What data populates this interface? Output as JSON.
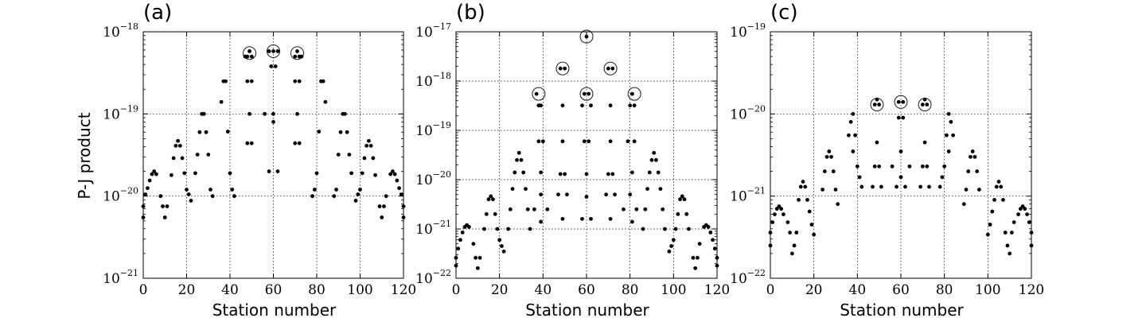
{
  "shared": {
    "ylabel": "P-J product",
    "xlabel": "Station number",
    "x_ticks": [
      0,
      20,
      40,
      60,
      80,
      100,
      120
    ],
    "marker_color": "#000000"
  },
  "chart_data": [
    {
      "type": "scatter",
      "panel_label": "(a)",
      "xlabel": "Station number",
      "ylabel": "P-J product",
      "xlim": [
        0,
        120
      ],
      "ylim": [
        1e-21,
        1e-18
      ],
      "yscale": "log",
      "grid": true,
      "y_ticks": [
        {
          "base": "10",
          "exp": "−21"
        },
        {
          "base": "10",
          "exp": "−20"
        },
        {
          "base": "10",
          "exp": "−19"
        },
        {
          "base": "10",
          "exp": "−18"
        }
      ],
      "points": [
        [
          0,
          5.5e-21
        ],
        [
          0,
          7.5e-21
        ],
        [
          1,
          1.05e-20
        ],
        [
          2,
          1.25e-20
        ],
        [
          3,
          1.55e-20
        ],
        [
          4,
          1.85e-20
        ],
        [
          5,
          2e-20
        ],
        [
          6,
          1.85e-20
        ],
        [
          8,
          1e-20
        ],
        [
          9,
          7.5e-21
        ],
        [
          10,
          5.5e-21
        ],
        [
          11,
          7.5e-21
        ],
        [
          13,
          1.8e-20
        ],
        [
          14,
          2.9e-20
        ],
        [
          15,
          4.1e-20
        ],
        [
          16,
          4.7e-20
        ],
        [
          17,
          4.1e-20
        ],
        [
          18,
          2.9e-20
        ],
        [
          19,
          1.9e-20
        ],
        [
          20,
          1.2e-20
        ],
        [
          21,
          1.05e-20
        ],
        [
          22,
          8.8e-21
        ],
        [
          24,
          1.9e-20
        ],
        [
          25,
          3.2e-20
        ],
        [
          26,
          6e-20
        ],
        [
          27,
          1e-19
        ],
        [
          28,
          1e-19
        ],
        [
          29,
          6e-20
        ],
        [
          30,
          3.2e-20
        ],
        [
          31,
          1.2e-20
        ],
        [
          32,
          1e-20
        ],
        [
          36,
          1.4e-19
        ],
        [
          37,
          2.5e-19
        ],
        [
          38,
          2.5e-19
        ],
        [
          39,
          6.1e-20
        ],
        [
          40,
          1.9e-20
        ],
        [
          41,
          1.2e-20
        ],
        [
          42,
          1e-20
        ],
        [
          47,
          5e-19
        ],
        [
          48,
          5e-19
        ],
        [
          49,
          5.8e-19
        ],
        [
          50,
          5e-19
        ],
        [
          48,
          2.5e-19
        ],
        [
          50,
          2.5e-19
        ],
        [
          49,
          1e-19
        ],
        [
          48,
          4.4e-20
        ],
        [
          50,
          4.4e-20
        ],
        [
          58,
          5.8e-19
        ],
        [
          60,
          5.8e-19
        ],
        [
          62,
          5.8e-19
        ],
        [
          59,
          3.8e-19
        ],
        [
          61,
          3.8e-19
        ],
        [
          60,
          1e-19
        ],
        [
          60,
          8e-20
        ],
        [
          58,
          2e-20
        ],
        [
          62,
          2e-20
        ],
        [
          56,
          1e-19
        ],
        [
          70,
          5e-19
        ],
        [
          71,
          5.8e-19
        ],
        [
          72,
          5e-19
        ],
        [
          73,
          5e-19
        ],
        [
          70,
          2.5e-19
        ],
        [
          72,
          2.5e-19
        ],
        [
          71,
          1e-19
        ],
        [
          70,
          4.4e-20
        ],
        [
          72,
          4.4e-20
        ],
        [
          78,
          1e-20
        ],
        [
          79,
          1.2e-20
        ],
        [
          80,
          1.9e-20
        ],
        [
          81,
          6.1e-20
        ],
        [
          82,
          2.5e-19
        ],
        [
          83,
          2.5e-19
        ],
        [
          84,
          1.4e-19
        ],
        [
          88,
          1e-20
        ],
        [
          89,
          1.2e-20
        ],
        [
          90,
          3.2e-20
        ],
        [
          91,
          6e-20
        ],
        [
          92,
          1e-19
        ],
        [
          93,
          1e-19
        ],
        [
          94,
          6e-20
        ],
        [
          95,
          3.2e-20
        ],
        [
          96,
          1.9e-20
        ],
        [
          98,
          8.8e-21
        ],
        [
          99,
          1.05e-20
        ],
        [
          100,
          1.2e-20
        ],
        [
          101,
          1.9e-20
        ],
        [
          102,
          2.9e-20
        ],
        [
          103,
          4.1e-20
        ],
        [
          104,
          4.7e-20
        ],
        [
          105,
          4.1e-20
        ],
        [
          106,
          2.9e-20
        ],
        [
          107,
          1.8e-20
        ],
        [
          109,
          7.5e-21
        ],
        [
          110,
          5.5e-21
        ],
        [
          111,
          7.5e-21
        ],
        [
          112,
          1e-20
        ],
        [
          114,
          1.85e-20
        ],
        [
          115,
          2e-20
        ],
        [
          116,
          1.85e-20
        ],
        [
          117,
          1.55e-20
        ],
        [
          118,
          1.25e-20
        ],
        [
          119,
          1.05e-20
        ],
        [
          120,
          7.5e-21
        ],
        [
          120,
          5.5e-21
        ]
      ],
      "circled": [
        [
          49,
          5.5e-19
        ],
        [
          60,
          5.8e-19
        ],
        [
          71,
          5.5e-19
        ]
      ]
    },
    {
      "type": "scatter",
      "panel_label": "(b)",
      "xlabel": "Station number",
      "ylabel": "",
      "xlim": [
        0,
        120
      ],
      "ylim": [
        1e-22,
        1e-17
      ],
      "yscale": "log",
      "grid": true,
      "y_ticks": [
        {
          "base": "10",
          "exp": "−22"
        },
        {
          "base": "10",
          "exp": "−21"
        },
        {
          "base": "10",
          "exp": "−20"
        },
        {
          "base": "10",
          "exp": "−19"
        },
        {
          "base": "10",
          "exp": "−18"
        },
        {
          "base": "10",
          "exp": "−17"
        }
      ],
      "points": [
        [
          0,
          1.8e-22
        ],
        [
          0,
          2.6e-22
        ],
        [
          1,
          4e-22
        ],
        [
          2,
          6e-22
        ],
        [
          3,
          8.5e-22
        ],
        [
          4,
          1.1e-21
        ],
        [
          5,
          1.2e-21
        ],
        [
          6,
          1.1e-21
        ],
        [
          8,
          5e-22
        ],
        [
          9,
          2.6e-22
        ],
        [
          10,
          1.6e-22
        ],
        [
          11,
          2.6e-22
        ],
        [
          13,
          1e-21
        ],
        [
          14,
          2e-21
        ],
        [
          15,
          4e-21
        ],
        [
          16,
          4.6e-21
        ],
        [
          17,
          4e-21
        ],
        [
          18,
          2e-21
        ],
        [
          19,
          1e-21
        ],
        [
          20,
          6e-22
        ],
        [
          21,
          4.5e-22
        ],
        [
          22,
          3.5e-22
        ],
        [
          24,
          1e-21
        ],
        [
          25,
          2.5e-21
        ],
        [
          26,
          6.5e-21
        ],
        [
          27,
          1.4e-20
        ],
        [
          28,
          2.5e-20
        ],
        [
          29,
          3.5e-20
        ],
        [
          30,
          2.5e-20
        ],
        [
          31,
          1.4e-20
        ],
        [
          32,
          6.5e-21
        ],
        [
          33,
          2.5e-21
        ],
        [
          34,
          1e-21
        ],
        [
          37,
          5.5e-19
        ],
        [
          38,
          3.2e-19
        ],
        [
          39,
          3.2e-19
        ],
        [
          38,
          6e-20
        ],
        [
          40,
          6e-20
        ],
        [
          39,
          1.4e-20
        ],
        [
          39,
          5e-21
        ],
        [
          36,
          2.5e-21
        ],
        [
          42,
          2.5e-21
        ],
        [
          39,
          1.4e-21
        ],
        [
          48,
          1.8e-18
        ],
        [
          50,
          1.8e-18
        ],
        [
          49,
          3.2e-19
        ],
        [
          49,
          6e-20
        ],
        [
          48,
          1.3e-20
        ],
        [
          50,
          1.3e-20
        ],
        [
          47,
          5e-21
        ],
        [
          51,
          5e-21
        ],
        [
          49,
          1.6e-21
        ],
        [
          59,
          5.5e-19
        ],
        [
          61,
          5.5e-19
        ],
        [
          58,
          3.2e-19
        ],
        [
          62,
          3.2e-19
        ],
        [
          60,
          8e-18
        ],
        [
          59,
          6e-20
        ],
        [
          61,
          6e-20
        ],
        [
          60,
          1.3e-20
        ],
        [
          60,
          4.5e-21
        ],
        [
          58,
          1.6e-21
        ],
        [
          62,
          1.6e-21
        ],
        [
          70,
          1.8e-18
        ],
        [
          72,
          1.8e-18
        ],
        [
          71,
          3.2e-19
        ],
        [
          71,
          6e-20
        ],
        [
          70,
          1.3e-20
        ],
        [
          72,
          1.3e-20
        ],
        [
          69,
          5e-21
        ],
        [
          73,
          5e-21
        ],
        [
          71,
          1.6e-21
        ],
        [
          81,
          5.5e-19
        ],
        [
          80,
          3.2e-19
        ],
        [
          82,
          3.2e-19
        ],
        [
          79,
          6e-20
        ],
        [
          82,
          6e-20
        ],
        [
          81,
          1.4e-20
        ],
        [
          80,
          5e-21
        ],
        [
          77,
          2.5e-21
        ],
        [
          83,
          2.5e-21
        ],
        [
          81,
          1.4e-21
        ],
        [
          86,
          1e-21
        ],
        [
          87,
          2.5e-21
        ],
        [
          88,
          6.5e-21
        ],
        [
          89,
          1.4e-20
        ],
        [
          90,
          2.5e-20
        ],
        [
          91,
          3.5e-20
        ],
        [
          92,
          2.5e-20
        ],
        [
          93,
          1.4e-20
        ],
        [
          94,
          6.5e-21
        ],
        [
          95,
          2.5e-21
        ],
        [
          96,
          1e-21
        ],
        [
          98,
          3.5e-22
        ],
        [
          99,
          4.5e-22
        ],
        [
          100,
          6e-22
        ],
        [
          101,
          1e-21
        ],
        [
          102,
          2e-21
        ],
        [
          103,
          4e-21
        ],
        [
          104,
          4.6e-21
        ],
        [
          105,
          4e-21
        ],
        [
          106,
          2e-21
        ],
        [
          107,
          1e-21
        ],
        [
          109,
          2.6e-22
        ],
        [
          110,
          1.6e-22
        ],
        [
          111,
          2.6e-22
        ],
        [
          112,
          5e-22
        ],
        [
          114,
          1.1e-21
        ],
        [
          115,
          1.2e-21
        ],
        [
          116,
          1.1e-21
        ],
        [
          117,
          8.5e-22
        ],
        [
          118,
          6e-22
        ],
        [
          119,
          4e-22
        ],
        [
          120,
          2.6e-22
        ],
        [
          120,
          1.8e-22
        ]
      ],
      "circled": [
        [
          38,
          5.5e-19
        ],
        [
          49,
          1.8e-18
        ],
        [
          60,
          8e-18
        ],
        [
          60,
          5.5e-19
        ],
        [
          71,
          1.8e-18
        ],
        [
          82,
          5.5e-19
        ]
      ]
    },
    {
      "type": "scatter",
      "panel_label": "(c)",
      "xlabel": "Station number",
      "ylabel": "",
      "xlim": [
        0,
        120
      ],
      "ylim": [
        1e-22,
        1e-19
      ],
      "yscale": "log",
      "grid": true,
      "y_ticks": [
        {
          "base": "10",
          "exp": "−22"
        },
        {
          "base": "10",
          "exp": "−21"
        },
        {
          "base": "10",
          "exp": "−20"
        },
        {
          "base": "10",
          "exp": "−19"
        }
      ],
      "points": [
        [
          0,
          2.5e-22
        ],
        [
          0,
          3.6e-22
        ],
        [
          1,
          4.8e-22
        ],
        [
          2,
          6e-22
        ],
        [
          3,
          7e-22
        ],
        [
          4,
          7.5e-22
        ],
        [
          5,
          7e-22
        ],
        [
          6,
          6e-22
        ],
        [
          8,
          4.8e-22
        ],
        [
          9,
          3.6e-22
        ],
        [
          10,
          2e-22
        ],
        [
          11,
          2.5e-22
        ],
        [
          12,
          3.6e-22
        ],
        [
          13,
          9e-22
        ],
        [
          14,
          1.3e-21
        ],
        [
          15,
          1.5e-21
        ],
        [
          16,
          1.3e-21
        ],
        [
          17,
          9e-22
        ],
        [
          18,
          6.5e-22
        ],
        [
          19,
          4.5e-22
        ],
        [
          20,
          3.4e-22
        ],
        [
          24,
          1.2e-21
        ],
        [
          25,
          2e-21
        ],
        [
          26,
          3e-21
        ],
        [
          27,
          3.5e-21
        ],
        [
          28,
          3e-21
        ],
        [
          29,
          2e-21
        ],
        [
          30,
          1.2e-21
        ],
        [
          31,
          8e-22
        ],
        [
          36,
          5.5e-21
        ],
        [
          37,
          8e-21
        ],
        [
          38,
          1e-20
        ],
        [
          39,
          5.5e-21
        ],
        [
          40,
          2.3e-21
        ],
        [
          41,
          1.7e-21
        ],
        [
          42,
          1.3e-21
        ],
        [
          38,
          3.5e-21
        ],
        [
          48,
          1.3e-20
        ],
        [
          49,
          1.5e-20
        ],
        [
          50,
          1.3e-20
        ],
        [
          49,
          4.5e-21
        ],
        [
          48,
          2.3e-21
        ],
        [
          50,
          2.3e-21
        ],
        [
          47,
          1.3e-21
        ],
        [
          51,
          1.3e-21
        ],
        [
          59,
          1.4e-20
        ],
        [
          61,
          1.4e-20
        ],
        [
          59,
          9e-21
        ],
        [
          61,
          9e-21
        ],
        [
          60,
          3.5e-21
        ],
        [
          60,
          1.7e-21
        ],
        [
          58,
          1.3e-21
        ],
        [
          62,
          1.3e-21
        ],
        [
          56,
          2.3e-21
        ],
        [
          64,
          2.3e-21
        ],
        [
          70,
          1.3e-20
        ],
        [
          71,
          1.5e-20
        ],
        [
          72,
          1.3e-20
        ],
        [
          71,
          4.5e-21
        ],
        [
          70,
          2.3e-21
        ],
        [
          72,
          2.3e-21
        ],
        [
          69,
          1.3e-21
        ],
        [
          73,
          1.3e-21
        ],
        [
          78,
          1.3e-21
        ],
        [
          79,
          1.7e-21
        ],
        [
          80,
          2.3e-21
        ],
        [
          81,
          5.5e-21
        ],
        [
          82,
          1e-20
        ],
        [
          83,
          8e-21
        ],
        [
          84,
          5.5e-21
        ],
        [
          82,
          3.5e-21
        ],
        [
          89,
          8e-22
        ],
        [
          90,
          1.2e-21
        ],
        [
          91,
          2e-21
        ],
        [
          92,
          3e-21
        ],
        [
          93,
          3.5e-21
        ],
        [
          94,
          3e-21
        ],
        [
          95,
          2e-21
        ],
        [
          96,
          1.2e-21
        ],
        [
          100,
          3.4e-22
        ],
        [
          101,
          4.5e-22
        ],
        [
          102,
          6.5e-22
        ],
        [
          103,
          9e-22
        ],
        [
          104,
          1.3e-21
        ],
        [
          105,
          1.5e-21
        ],
        [
          106,
          1.3e-21
        ],
        [
          107,
          9e-22
        ],
        [
          108,
          3.6e-22
        ],
        [
          109,
          2.5e-22
        ],
        [
          110,
          2e-22
        ],
        [
          111,
          3.6e-22
        ],
        [
          112,
          4.8e-22
        ],
        [
          114,
          6e-22
        ],
        [
          115,
          7e-22
        ],
        [
          116,
          7.5e-22
        ],
        [
          117,
          7e-22
        ],
        [
          118,
          6e-22
        ],
        [
          119,
          4.8e-22
        ],
        [
          120,
          3.6e-22
        ],
        [
          120,
          2.5e-22
        ]
      ],
      "circled": [
        [
          49,
          1.3e-20
        ],
        [
          60,
          1.4e-20
        ],
        [
          71,
          1.3e-20
        ]
      ]
    }
  ]
}
